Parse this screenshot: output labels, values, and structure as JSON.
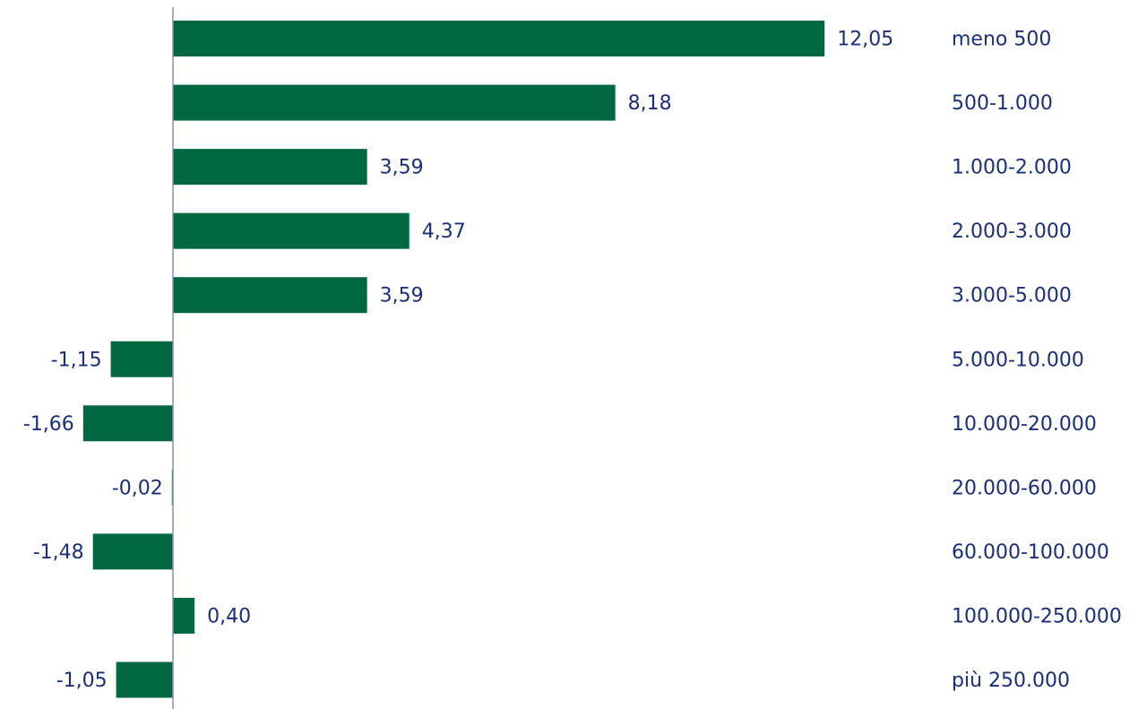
{
  "chart_data": {
    "type": "bar",
    "orientation": "horizontal",
    "title": "",
    "xlabel": "",
    "ylabel": "",
    "categories": [
      "meno 500",
      "500-1.000",
      "1.000-2.000",
      "2.000-3.000",
      "3.000-5.000",
      "5.000-10.000",
      "10.000-20.000",
      "20.000-60.000",
      "60.000-100.000",
      "100.000-250.000",
      "più 250.000"
    ],
    "values": [
      12.05,
      8.18,
      3.59,
      4.37,
      3.59,
      -1.15,
      -1.66,
      -0.02,
      -1.48,
      0.4,
      -1.05
    ],
    "value_labels": [
      "12,05",
      "8,18",
      "3,59",
      "4,37",
      "3,59",
      "-1,15",
      "-1,66",
      "-0,02",
      "-1,48",
      "0,40",
      "-1,05"
    ],
    "xlim": [
      -3.2,
      12.05
    ],
    "grid": false,
    "legend": "none",
    "colors": {
      "bar": "#006841",
      "text": "#1a2f7a",
      "axis": "#8a8fa8"
    }
  }
}
